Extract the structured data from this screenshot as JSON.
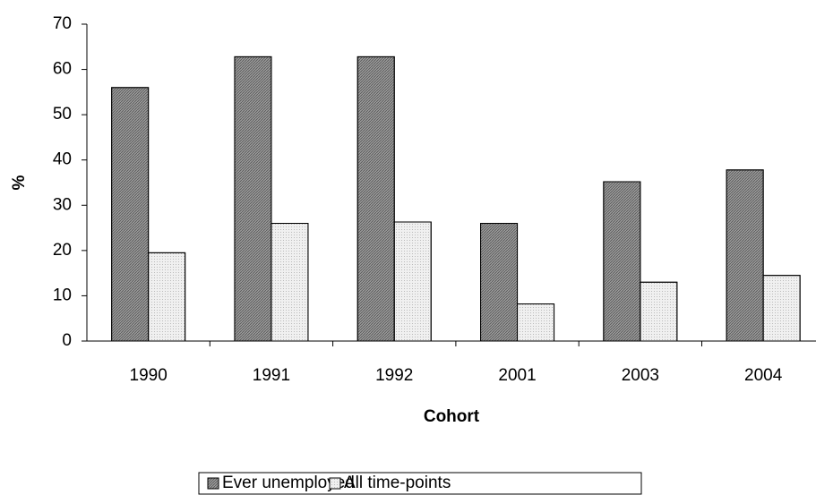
{
  "chart_data": {
    "type": "bar",
    "categories": [
      "1990",
      "1991",
      "1992",
      "2001",
      "2003",
      "2004"
    ],
    "series": [
      {
        "name": "Ever unemployed",
        "color": "#9a9a9a",
        "values": [
          56,
          62.8,
          62.8,
          26,
          35.2,
          37.8
        ]
      },
      {
        "name": "All time-points",
        "color": "#f0f0f0",
        "values": [
          19.5,
          26,
          26.3,
          8.2,
          13,
          14.5
        ]
      }
    ],
    "xlabel": "Cohort",
    "ylabel": "%",
    "ylim": [
      0,
      70
    ],
    "yticks": [
      0,
      10,
      20,
      30,
      40,
      50,
      60,
      70
    ],
    "grid": false
  }
}
